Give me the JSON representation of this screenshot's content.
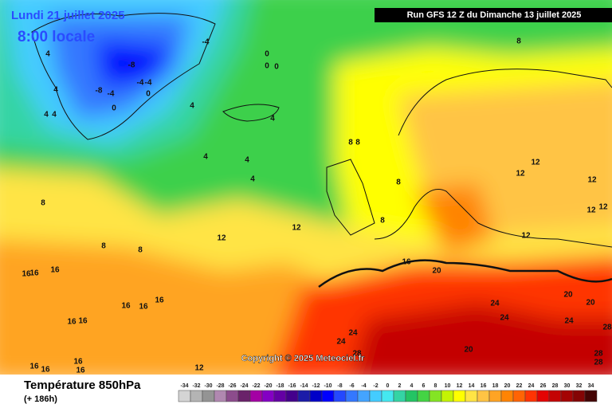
{
  "header": {
    "date": "Lundi 21 juillet 2025",
    "time": "8:00 locale",
    "run": "Run GFS 12 Z du Dimanche 13 juillet 2025"
  },
  "copyright": "Copyright © 2025 Meteociel.fr",
  "footer": {
    "title": "Température 850hPa",
    "lead": "(+ 186h)"
  },
  "scale": {
    "labels": [
      -34,
      -32,
      -30,
      -28,
      -26,
      -24,
      -22,
      -20,
      -18,
      -16,
      -14,
      -12,
      -10,
      -8,
      -6,
      -4,
      -2,
      0,
      2,
      4,
      6,
      8,
      10,
      12,
      14,
      16,
      18,
      20,
      22,
      24,
      26,
      28,
      30,
      32,
      34
    ],
    "colors": [
      "#d4d4d4",
      "#b4b4b4",
      "#949494",
      "#b088b0",
      "#8c4c8c",
      "#6a226a",
      "#a400a4",
      "#8400c4",
      "#6400a4",
      "#44008c",
      "#1c1ca8",
      "#0000c8",
      "#0000ff",
      "#2448ff",
      "#3478ff",
      "#44a4ff",
      "#44ccff",
      "#44e8f0",
      "#34d4a4",
      "#24c464",
      "#44d444",
      "#84e424",
      "#c4f404",
      "#ffff00",
      "#ffe444",
      "#ffc444",
      "#ffa424",
      "#ff8404",
      "#ff6404",
      "#ff3404",
      "#e40404",
      "#c40404",
      "#a40404",
      "#840404",
      "#440404"
    ]
  },
  "map": {
    "contour_labels": [
      4,
      -4,
      -8,
      -4,
      -4,
      -8,
      -4,
      0,
      0,
      4,
      4,
      4,
      4,
      4,
      0,
      0,
      0,
      4,
      4,
      4,
      8,
      8,
      8,
      8,
      8,
      8,
      8,
      8,
      12,
      12,
      12,
      12,
      12,
      12,
      12,
      12,
      12,
      16,
      16,
      16,
      16,
      16,
      16,
      16,
      16,
      16,
      16,
      16,
      16,
      16,
      20,
      20,
      20,
      20,
      24,
      24,
      24,
      24,
      24,
      28,
      28,
      28,
      28
    ]
  }
}
